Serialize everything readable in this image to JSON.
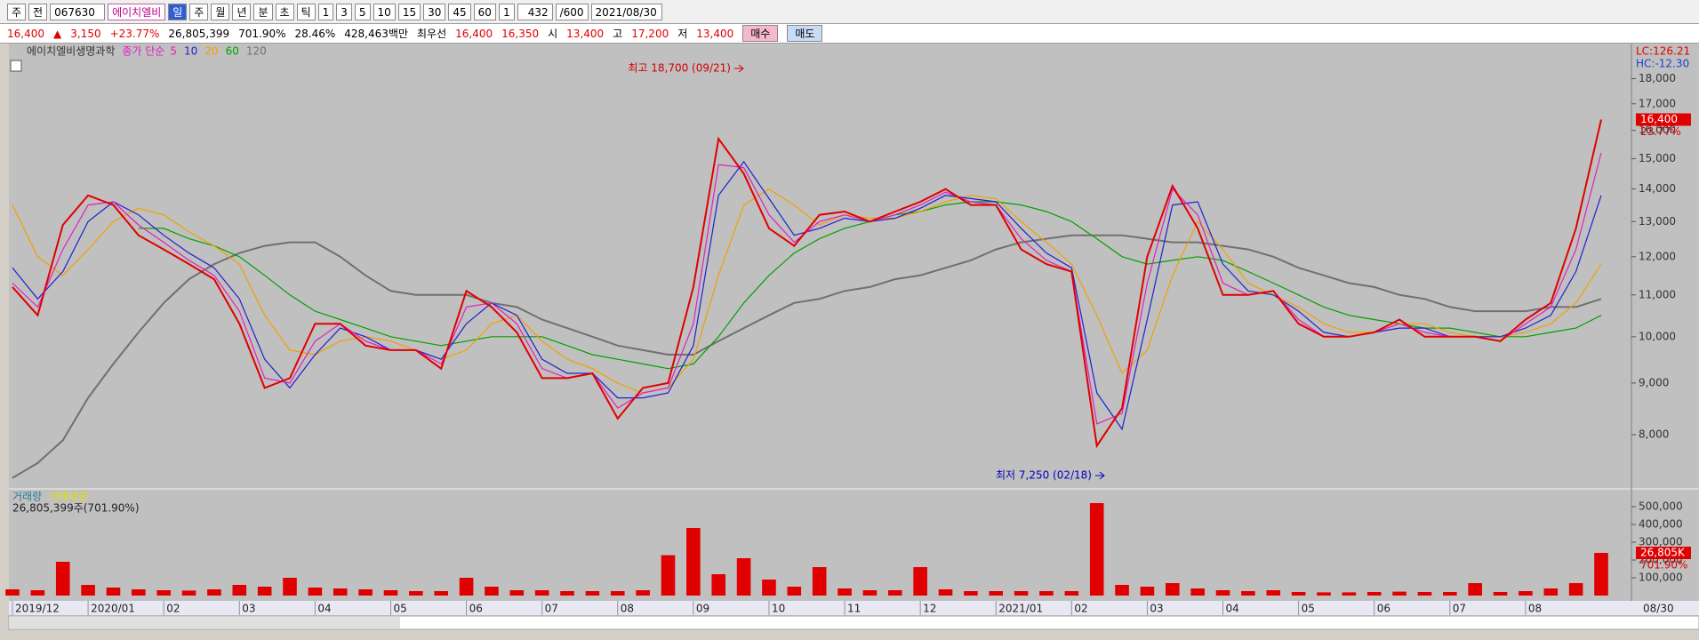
{
  "toolbar": {
    "items": [
      "주",
      "전",
      "067630",
      "에이치엘비",
      "일",
      "주",
      "월",
      "년",
      "분",
      "초",
      "틱",
      "1",
      "3",
      "5",
      "10",
      "15",
      "30",
      "45",
      "60",
      "1",
      "432",
      "/600",
      "2021/08/30"
    ]
  },
  "quote_bar": {
    "items": [
      "16,400",
      "▲",
      "3,150",
      "+23.77%",
      "26,805,399",
      "701.90%",
      "28.46%",
      "428,463백만",
      "최우선",
      "16,400",
      "16,350",
      "시",
      "13,400",
      "고",
      "17,200",
      "저",
      "13,400",
      "매수",
      "매도"
    ]
  },
  "chart_data": {
    "type": "line",
    "log_scale": true,
    "grid": false,
    "legend_label": "종가 단순",
    "categories": [
      "2019/12",
      null,
      null,
      "2020/01",
      null,
      null,
      "02",
      null,
      null,
      "03",
      null,
      null,
      "04",
      null,
      null,
      "05",
      null,
      null,
      "06",
      null,
      null,
      "07",
      null,
      null,
      "08",
      null,
      null,
      "09",
      null,
      null,
      "10",
      null,
      null,
      "11",
      null,
      null,
      "12",
      null,
      null,
      "2021/01",
      null,
      null,
      "02",
      null,
      null,
      "03",
      null,
      null,
      "04",
      null,
      null,
      "05",
      null,
      null,
      "06",
      null,
      null,
      "07",
      null,
      null,
      "08",
      null,
      null,
      null
    ],
    "last_date": "08/30",
    "ylim": [
      7100,
      19500
    ],
    "yticks": [
      {
        "value": 8000,
        "label": "8,000"
      },
      {
        "value": 9000,
        "label": "9,000"
      },
      {
        "value": 10000,
        "label": "10,000"
      },
      {
        "value": 11000,
        "label": "11,000"
      },
      {
        "value": 12000,
        "label": "12,000"
      },
      {
        "value": 13000,
        "label": "13,000"
      },
      {
        "value": 14000,
        "label": "14,000"
      },
      {
        "value": 15000,
        "label": "15,000"
      },
      {
        "value": 16000,
        "label": "16,000"
      },
      {
        "value": 17000,
        "label": "17,000"
      },
      {
        "value": 18000,
        "label": "18,000"
      }
    ],
    "series": [
      {
        "name": "에이치엘비생명과학",
        "color": "#e00000",
        "values": [
          11200,
          10500,
          12900,
          13800,
          13500,
          12600,
          12200,
          11800,
          11400,
          10300,
          8900,
          9100,
          10300,
          10300,
          9800,
          9700,
          9700,
          9300,
          11100,
          10700,
          10100,
          9100,
          9100,
          9200,
          8300,
          8900,
          9000,
          11200,
          15700,
          14500,
          12800,
          12300,
          13200,
          13300,
          13000,
          13300,
          13600,
          14000,
          13500,
          13500,
          12200,
          11800,
          11600,
          7800,
          8500,
          12000,
          14100,
          12800,
          11000,
          11000,
          11100,
          10300,
          10000,
          10000,
          10100,
          10400,
          10000,
          10000,
          10000,
          9900,
          10400,
          10800,
          12800,
          16400
        ]
      },
      {
        "name": "5",
        "color": "#e020c0",
        "values": [
          11300,
          10700,
          12200,
          13500,
          13600,
          12900,
          12400,
          11900,
          11500,
          10600,
          9100,
          9000,
          9900,
          10300,
          9900,
          9700,
          9700,
          9400,
          10700,
          10800,
          10300,
          9300,
          9100,
          9200,
          8500,
          8800,
          8900,
          10300,
          14800,
          14700,
          13200,
          12400,
          13000,
          13200,
          13000,
          13200,
          13500,
          13900,
          13600,
          13500,
          12500,
          11900,
          11600,
          8200,
          8400,
          11300,
          14000,
          13200,
          11300,
          11000,
          11100,
          10400,
          10000,
          10000,
          10100,
          10300,
          10100,
          10000,
          10000,
          9900,
          10300,
          10700,
          12200,
          15200
        ]
      },
      {
        "name": "10",
        "color": "#2020d0",
        "values": [
          11700,
          10900,
          11600,
          13000,
          13600,
          13200,
          12600,
          12100,
          11700,
          10900,
          9500,
          8900,
          9600,
          10200,
          10000,
          9700,
          9700,
          9500,
          10300,
          10800,
          10500,
          9500,
          9200,
          9200,
          8700,
          8700,
          8800,
          9800,
          13800,
          14900,
          13700,
          12600,
          12800,
          13100,
          13000,
          13100,
          13400,
          13800,
          13700,
          13600,
          12800,
          12100,
          11700,
          8800,
          8100,
          10400,
          13500,
          13600,
          11800,
          11100,
          11000,
          10600,
          10100,
          10000,
          10100,
          10200,
          10200,
          10000,
          10000,
          10000,
          10200,
          10500,
          11600,
          13800
        ]
      },
      {
        "name": "20",
        "color": "#f0a000",
        "values": [
          13500,
          12000,
          11500,
          12200,
          13000,
          13400,
          13200,
          12700,
          12300,
          11800,
          10500,
          9700,
          9600,
          9900,
          10000,
          9900,
          9700,
          9500,
          9700,
          10300,
          10500,
          9900,
          9500,
          9300,
          9000,
          8800,
          8900,
          9500,
          11500,
          13500,
          14000,
          13500,
          12900,
          13200,
          13100,
          13100,
          13300,
          13600,
          13800,
          13700,
          13000,
          12400,
          11800,
          10500,
          9200,
          9700,
          11500,
          13000,
          12200,
          11300,
          11000,
          10700,
          10300,
          10100,
          10100,
          10300,
          10300,
          10100,
          10000,
          10000,
          10100,
          10300,
          10800,
          11800
        ]
      },
      {
        "name": "60",
        "color": "#00a000",
        "values": [
          null,
          null,
          null,
          null,
          null,
          12800,
          12800,
          12500,
          12300,
          12000,
          11500,
          11000,
          10600,
          10400,
          10200,
          10000,
          9900,
          9800,
          9900,
          10000,
          10000,
          10000,
          9800,
          9600,
          9500,
          9400,
          9300,
          9400,
          10000,
          10800,
          11500,
          12100,
          12500,
          12800,
          13000,
          13200,
          13300,
          13500,
          13600,
          13600,
          13500,
          13300,
          13000,
          12500,
          12000,
          11800,
          11900,
          12000,
          11900,
          11600,
          11300,
          11000,
          10700,
          10500,
          10400,
          10300,
          10200,
          10200,
          10100,
          10000,
          10000,
          10100,
          10200,
          10500
        ]
      },
      {
        "name": "120",
        "color": "#707070",
        "values": [
          7250,
          7500,
          7900,
          8700,
          9400,
          10100,
          10800,
          11400,
          11800,
          12100,
          12300,
          12400,
          12400,
          12000,
          11500,
          11100,
          11000,
          11000,
          11000,
          10800,
          10700,
          10400,
          10200,
          10000,
          9800,
          9700,
          9600,
          9600,
          9900,
          10200,
          10500,
          10800,
          10900,
          11100,
          11200,
          11400,
          11500,
          11700,
          11900,
          12200,
          12400,
          12500,
          12600,
          12600,
          12600,
          12500,
          12400,
          12400,
          12300,
          12200,
          12000,
          11700,
          11500,
          11300,
          11200,
          11000,
          10900,
          10700,
          10600,
          10600,
          10600,
          10700,
          10700,
          10900
        ]
      }
    ],
    "annotations": [
      "최고 18,700 (09/21)",
      "최저 7,250 (02/18)"
    ],
    "right_labels": {
      "lc": "LC:126.21",
      "hc": "HC:-12.30",
      "price": "16,400",
      "change": "23.77%",
      "volume": "26,805K",
      "volume_ratio": "701.90%"
    },
    "volume": {
      "name": "거래량",
      "second_name": "거래대금",
      "info": "26,805,399주(701.90%)",
      "color": "#e00000",
      "ylim": [
        0,
        590000
      ],
      "yticks": [
        {
          "value": 100000,
          "label": "100,000"
        },
        {
          "value": 200000,
          "label": "200,000"
        },
        {
          "value": 300000,
          "label": "300,000"
        },
        {
          "value": 400000,
          "label": "400,000"
        },
        {
          "value": 500000,
          "label": "500,000"
        }
      ],
      "values": [
        35000,
        30000,
        190000,
        60000,
        45000,
        35000,
        30000,
        28000,
        35000,
        60000,
        50000,
        100000,
        45000,
        40000,
        35000,
        30000,
        25000,
        25000,
        100000,
        50000,
        30000,
        30000,
        25000,
        25000,
        25000,
        30000,
        227000,
        380000,
        120000,
        210000,
        90000,
        50000,
        160000,
        40000,
        30000,
        30000,
        160000,
        35000,
        25000,
        25000,
        25000,
        25000,
        25000,
        520000,
        60000,
        50000,
        70000,
        40000,
        30000,
        25000,
        30000,
        20000,
        18000,
        18000,
        20000,
        22000,
        20000,
        20000,
        70000,
        20000,
        25000,
        40000,
        70000,
        240000
      ]
    }
  }
}
